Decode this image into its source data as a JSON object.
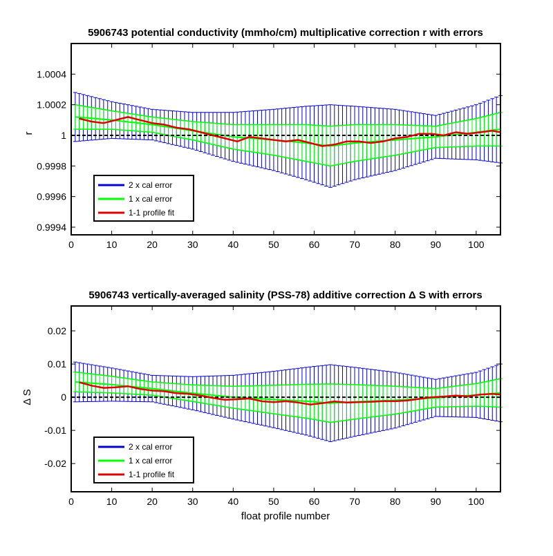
{
  "colors": {
    "cal2": "#0000cc",
    "cal1": "#00ff00",
    "fit": "#dd0000",
    "zero": "#000000"
  },
  "chart_data": [
    {
      "type": "line",
      "title": "5906743 potential conductivity (mmho/cm) multiplicative correction r with errors",
      "xlabel": "",
      "ylabel": "r",
      "xlim": [
        0,
        106
      ],
      "ylim": [
        0.99935,
        1.0006
      ],
      "xticks": [
        0,
        10,
        20,
        30,
        40,
        50,
        60,
        70,
        80,
        90,
        100
      ],
      "yticks": [
        0.9994,
        0.9996,
        0.9998,
        1,
        1.0002,
        1.0004
      ],
      "ytick_labels": [
        "0.9994",
        "0.9996",
        "0.9998",
        "1",
        "1.0002",
        "1.0004"
      ],
      "zero_line": 1,
      "legend": {
        "location": "lower-left",
        "entries": [
          "2 x cal error",
          "1 x cal error",
          "1-1 profile fit"
        ]
      },
      "envelope_knots": {
        "x": [
          1,
          10,
          20,
          30,
          40,
          50,
          58,
          64,
          70,
          80,
          90,
          100,
          106
        ],
        "center": [
          1.00012,
          1.0001,
          1.00007,
          1.00003,
          0.99999,
          0.99997,
          0.99995,
          0.99993,
          0.99995,
          0.99997,
          0.99999,
          1.00002,
          1.00004
        ],
        "cal1_halfwidth": [
          8e-05,
          6e-05,
          5e-05,
          6e-05,
          8e-05,
          0.0001,
          0.00012,
          0.00013,
          0.00012,
          0.0001,
          7e-05,
          9e-05,
          0.00011
        ],
        "cal2_halfwidth": [
          0.00016,
          0.00012,
          0.0001,
          0.00012,
          0.00016,
          0.0002,
          0.00024,
          0.00027,
          0.00024,
          0.0002,
          0.00014,
          0.00018,
          0.00022
        ]
      },
      "series": [
        {
          "name": "1-1 profile fit",
          "x": [
            2,
            5,
            8,
            11,
            14,
            17,
            20,
            23,
            26,
            29,
            32,
            35,
            38,
            41,
            44,
            47,
            50,
            53,
            56,
            59,
            62,
            65,
            68,
            71,
            74,
            77,
            80,
            83,
            86,
            89,
            92,
            95,
            98,
            101,
            104,
            106
          ],
          "values": [
            1.00011,
            1.00009,
            1.00008,
            1.0001,
            1.00012,
            1.0001,
            1.00008,
            1.00007,
            1.00005,
            1.00004,
            1.00002,
            1.0,
            0.99998,
            0.99996,
            0.99999,
            0.99998,
            0.99997,
            0.99996,
            0.99997,
            0.99995,
            0.99993,
            0.99994,
            0.99996,
            0.99996,
            0.99995,
            0.99996,
            0.99998,
            0.99999,
            1.00001,
            1.00001,
            1.0,
            1.00002,
            1.00001,
            1.00002,
            1.00003,
            1.00002
          ]
        }
      ]
    },
    {
      "type": "line",
      "title": "5906743 vertically-averaged salinity (PSS-78) additive correction Δ S with errors",
      "xlabel": "float profile number",
      "ylabel": "Δ S",
      "xlim": [
        0,
        106
      ],
      "ylim": [
        -0.0285,
        0.0275
      ],
      "xticks": [
        0,
        10,
        20,
        30,
        40,
        50,
        60,
        70,
        80,
        90,
        100
      ],
      "yticks": [
        -0.02,
        -0.01,
        0,
        0.01,
        0.02
      ],
      "ytick_labels": [
        "-0.02",
        "-0.01",
        "0",
        "0.01",
        "0.02"
      ],
      "zero_line": 0,
      "legend": {
        "location": "lower-left",
        "entries": [
          "2 x cal error",
          "1 x cal error",
          "1-1 profile fit"
        ]
      },
      "envelope_knots": {
        "x": [
          1,
          10,
          20,
          30,
          40,
          50,
          58,
          64,
          70,
          80,
          90,
          100,
          106
        ],
        "center": [
          0.0046,
          0.0038,
          0.0026,
          0.0012,
          0.0,
          -0.0007,
          -0.0012,
          -0.0018,
          -0.0014,
          -0.0009,
          -0.0002,
          0.0007,
          0.0013
        ],
        "cal1_halfwidth": [
          0.003,
          0.0025,
          0.002,
          0.0025,
          0.0033,
          0.0043,
          0.0051,
          0.0058,
          0.0052,
          0.0042,
          0.0028,
          0.0034,
          0.0043
        ],
        "cal2_halfwidth": [
          0.006,
          0.005,
          0.004,
          0.005,
          0.0066,
          0.0085,
          0.0102,
          0.0116,
          0.0104,
          0.0084,
          0.0056,
          0.0068,
          0.0087
        ]
      },
      "series": [
        {
          "name": "1-1 profile fit",
          "x": [
            2,
            5,
            8,
            11,
            14,
            17,
            20,
            23,
            26,
            29,
            32,
            35,
            38,
            41,
            44,
            47,
            50,
            53,
            56,
            59,
            62,
            65,
            68,
            71,
            74,
            77,
            80,
            83,
            86,
            89,
            92,
            95,
            98,
            101,
            104,
            106
          ],
          "values": [
            0.0045,
            0.0035,
            0.0028,
            0.003,
            0.0033,
            0.0025,
            0.002,
            0.0018,
            0.0012,
            0.001,
            0.0005,
            -0.0002,
            -0.0008,
            -0.0006,
            -0.0004,
            -0.0012,
            -0.0015,
            -0.0012,
            -0.0016,
            -0.0022,
            -0.0018,
            -0.0013,
            -0.0016,
            -0.0015,
            -0.0014,
            -0.0012,
            -0.0012,
            -0.001,
            -0.0005,
            0.0,
            0.0002,
            0.0005,
            0.0003,
            0.0008,
            0.001,
            0.0008
          ]
        }
      ]
    }
  ]
}
